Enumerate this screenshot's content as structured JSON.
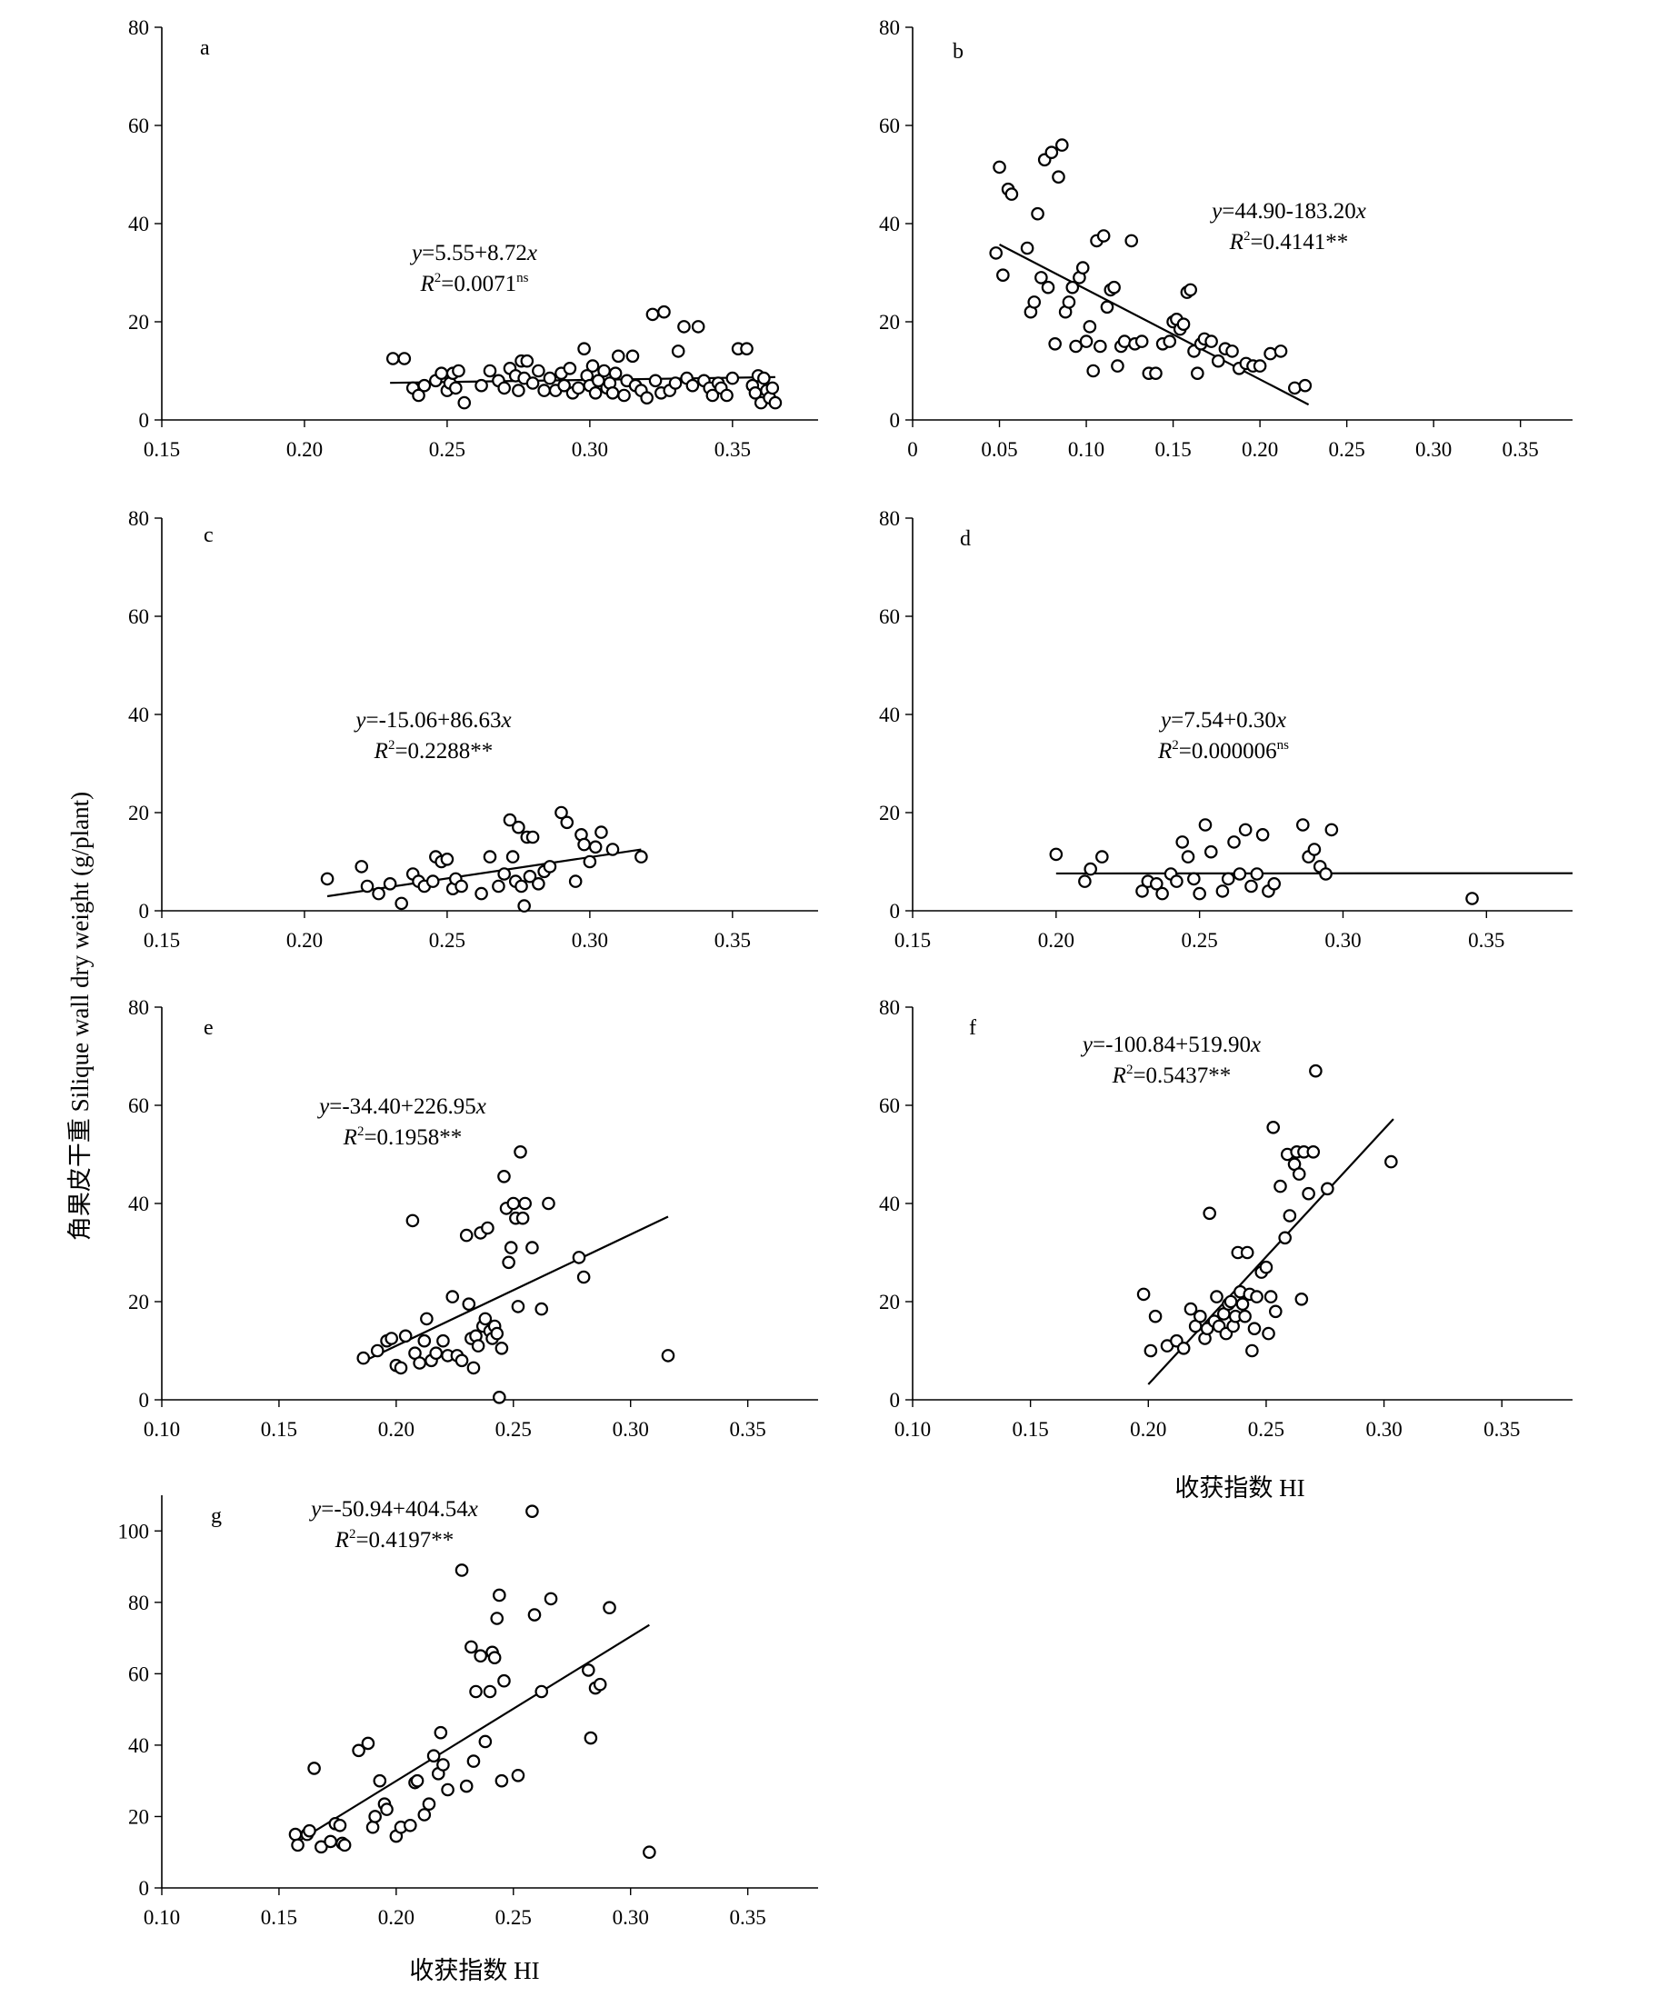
{
  "figure": {
    "y_axis_label": "角果皮干重 Silique wall dry weight (g/plant)",
    "x_axis_label_f": "收获指数 HI",
    "x_axis_label_g": "收获指数 HI"
  },
  "chart_data": [
    {
      "type": "scatter",
      "panel": "a",
      "title": "a",
      "equation": "y=5.55+8.72x",
      "r2_text": "R²=0.0071ns",
      "eq_y": "y",
      "eq_rhs": "=5.55+8.72",
      "eq_x": "x",
      "r2_R": "R",
      "r2_val": "=0.0071",
      "r2_sig": "ns",
      "xlim": [
        0.15,
        0.38
      ],
      "ylim": [
        0,
        80
      ],
      "xticks": [
        "0.15",
        "0.20",
        "0.25",
        "0.30",
        "0.35"
      ],
      "yticks": [
        "0",
        "20",
        "40",
        "60",
        "80"
      ],
      "fit": {
        "intercept": 5.55,
        "slope": 8.72,
        "x_range": [
          0.23,
          0.365
        ]
      },
      "x": [
        0.231,
        0.235,
        0.238,
        0.24,
        0.242,
        0.246,
        0.248,
        0.25,
        0.251,
        0.252,
        0.253,
        0.254,
        0.256,
        0.262,
        0.265,
        0.268,
        0.27,
        0.272,
        0.274,
        0.275,
        0.276,
        0.277,
        0.278,
        0.28,
        0.282,
        0.284,
        0.286,
        0.288,
        0.29,
        0.291,
        0.293,
        0.294,
        0.296,
        0.298,
        0.299,
        0.3,
        0.301,
        0.302,
        0.303,
        0.305,
        0.306,
        0.307,
        0.308,
        0.309,
        0.31,
        0.312,
        0.313,
        0.315,
        0.316,
        0.318,
        0.32,
        0.322,
        0.323,
        0.325,
        0.326,
        0.328,
        0.33,
        0.331,
        0.333,
        0.334,
        0.336,
        0.338,
        0.34,
        0.342,
        0.343,
        0.345,
        0.346,
        0.348,
        0.35,
        0.352,
        0.355,
        0.357,
        0.358,
        0.359,
        0.36,
        0.361,
        0.362,
        0.363,
        0.364,
        0.365
      ],
      "y": [
        12.5,
        12.5,
        6.5,
        5.0,
        7.0,
        8.0,
        9.5,
        6.0,
        7.5,
        9.5,
        6.5,
        10.0,
        3.5,
        7.0,
        10.0,
        8.0,
        6.5,
        10.5,
        9.0,
        6.0,
        12.0,
        8.5,
        12.0,
        7.5,
        10.0,
        6.0,
        8.5,
        6.0,
        9.5,
        7.0,
        10.5,
        5.5,
        6.5,
        14.5,
        9.0,
        7.0,
        11.0,
        5.5,
        8.0,
        10.0,
        6.5,
        7.5,
        5.5,
        9.5,
        13.0,
        5.0,
        8.0,
        13.0,
        7.0,
        6.0,
        4.5,
        21.5,
        8.0,
        5.5,
        22.0,
        6.0,
        7.5,
        14.0,
        19.0,
        8.5,
        7.0,
        19.0,
        8.0,
        6.5,
        5.0,
        7.5,
        6.5,
        5.0,
        8.5,
        14.5,
        14.5,
        7.0,
        5.5,
        9.0,
        3.5,
        8.5,
        6.0,
        4.5,
        6.5,
        3.5
      ]
    },
    {
      "type": "scatter",
      "panel": "b",
      "title": "b",
      "equation": "y=44.90-183.20x",
      "r2_text": "R²=0.4141**",
      "eq_y": "y",
      "eq_rhs": "=44.90-183.20",
      "eq_x": "x",
      "r2_R": "R",
      "r2_val": "=0.4141**",
      "r2_sig": "",
      "xlim": [
        0,
        0.38
      ],
      "ylim": [
        0,
        80
      ],
      "xticks": [
        "0",
        "0.05",
        "0.10",
        "0.15",
        "0.20",
        "0.25",
        "0.30",
        "0.35"
      ],
      "yticks": [
        "0",
        "20",
        "40",
        "60",
        "80"
      ],
      "fit": {
        "intercept": 44.9,
        "slope": -183.2,
        "x_range": [
          0.05,
          0.228
        ]
      },
      "x": [
        0.048,
        0.05,
        0.052,
        0.055,
        0.057,
        0.066,
        0.068,
        0.07,
        0.072,
        0.074,
        0.076,
        0.078,
        0.08,
        0.082,
        0.084,
        0.086,
        0.088,
        0.09,
        0.092,
        0.094,
        0.096,
        0.098,
        0.1,
        0.102,
        0.104,
        0.106,
        0.108,
        0.11,
        0.112,
        0.114,
        0.116,
        0.118,
        0.12,
        0.122,
        0.126,
        0.128,
        0.132,
        0.136,
        0.14,
        0.144,
        0.148,
        0.15,
        0.152,
        0.154,
        0.156,
        0.158,
        0.16,
        0.162,
        0.164,
        0.166,
        0.168,
        0.172,
        0.176,
        0.18,
        0.184,
        0.188,
        0.192,
        0.196,
        0.2,
        0.206,
        0.212,
        0.22,
        0.226
      ],
      "y": [
        34.0,
        51.5,
        29.5,
        47.0,
        46.0,
        35.0,
        22.0,
        24.0,
        42.0,
        29.0,
        53.0,
        27.0,
        54.5,
        15.5,
        49.5,
        56.0,
        22.0,
        24.0,
        27.0,
        15.0,
        29.0,
        31.0,
        16.0,
        19.0,
        10.0,
        36.5,
        15.0,
        37.5,
        23.0,
        26.5,
        27.0,
        11.0,
        15.0,
        16.0,
        36.5,
        15.5,
        16.0,
        9.5,
        9.5,
        15.5,
        16.0,
        20.0,
        20.5,
        18.5,
        19.5,
        26.0,
        26.5,
        14.0,
        9.5,
        15.5,
        16.5,
        16.0,
        12.0,
        14.5,
        14.0,
        10.5,
        11.5,
        11.0,
        11.0,
        13.5,
        14.0,
        6.5,
        7.0
      ]
    },
    {
      "type": "scatter",
      "panel": "c",
      "title": "c",
      "equation": "y=-15.06+86.63x",
      "r2_text": "R²=0.2288**",
      "eq_y": "y",
      "eq_rhs": "=-15.06+86.63",
      "eq_x": "x",
      "r2_R": "R",
      "r2_val": "=0.2288**",
      "r2_sig": "",
      "xlim": [
        0.15,
        0.38
      ],
      "ylim": [
        0,
        80
      ],
      "xticks": [
        "0.15",
        "0.20",
        "0.25",
        "0.30",
        "0.35"
      ],
      "yticks": [
        "0",
        "20",
        "40",
        "60",
        "80"
      ],
      "fit": {
        "intercept": -15.06,
        "slope": 86.63,
        "x_range": [
          0.208,
          0.318
        ]
      },
      "x": [
        0.208,
        0.22,
        0.222,
        0.226,
        0.23,
        0.234,
        0.238,
        0.24,
        0.242,
        0.245,
        0.246,
        0.248,
        0.25,
        0.252,
        0.253,
        0.255,
        0.262,
        0.265,
        0.268,
        0.27,
        0.272,
        0.273,
        0.274,
        0.275,
        0.276,
        0.277,
        0.278,
        0.279,
        0.28,
        0.282,
        0.284,
        0.286,
        0.29,
        0.292,
        0.295,
        0.297,
        0.298,
        0.3,
        0.302,
        0.304,
        0.308,
        0.318
      ],
      "y": [
        6.5,
        9.0,
        5.0,
        3.5,
        5.5,
        1.5,
        7.5,
        6.0,
        5.0,
        6.0,
        11.0,
        10.0,
        10.5,
        4.5,
        6.5,
        5.0,
        3.5,
        11.0,
        5.0,
        7.5,
        18.5,
        11.0,
        6.0,
        17.0,
        5.0,
        1.0,
        15.0,
        7.0,
        15.0,
        5.5,
        8.0,
        9.0,
        20.0,
        18.0,
        6.0,
        15.5,
        13.5,
        10.0,
        13.0,
        16.0,
        12.5,
        11.0
      ]
    },
    {
      "type": "scatter",
      "panel": "d",
      "title": "d",
      "equation": "y=7.54+0.30x",
      "r2_text": "R²=0.000006ns",
      "eq_y": "y",
      "eq_rhs": "=7.54+0.30",
      "eq_x": "x",
      "r2_R": "R",
      "r2_val": "=0.000006",
      "r2_sig": "ns",
      "xlim": [
        0.15,
        0.38
      ],
      "ylim": [
        0,
        80
      ],
      "xticks": [
        "0.15",
        "0.20",
        "0.25",
        "0.30",
        "0.35"
      ],
      "yticks": [
        "0",
        "20",
        "40",
        "60",
        "80"
      ],
      "fit": {
        "intercept": 7.54,
        "slope": 0.3,
        "x_range": [
          0.2,
          0.38
        ]
      },
      "x": [
        0.2,
        0.21,
        0.212,
        0.216,
        0.23,
        0.232,
        0.235,
        0.237,
        0.24,
        0.242,
        0.244,
        0.246,
        0.248,
        0.25,
        0.252,
        0.254,
        0.258,
        0.26,
        0.262,
        0.264,
        0.266,
        0.268,
        0.27,
        0.272,
        0.274,
        0.276,
        0.286,
        0.288,
        0.29,
        0.292,
        0.294,
        0.296,
        0.345
      ],
      "y": [
        11.5,
        6.0,
        8.5,
        11.0,
        4.0,
        6.0,
        5.5,
        3.5,
        7.5,
        6.0,
        14.0,
        11.0,
        6.5,
        3.5,
        17.5,
        12.0,
        4.0,
        6.5,
        14.0,
        7.5,
        16.5,
        5.0,
        7.5,
        15.5,
        4.0,
        5.5,
        17.5,
        11.0,
        12.5,
        9.0,
        7.5,
        16.5,
        2.5
      ]
    },
    {
      "type": "scatter",
      "panel": "e",
      "title": "e",
      "equation": "y=-34.40+226.95x",
      "r2_text": "R²=0.1958**",
      "eq_y": "y",
      "eq_rhs": "=-34.40+226.95",
      "eq_x": "x",
      "r2_R": "R",
      "r2_val": "=0.1958**",
      "r2_sig": "",
      "xlim": [
        0.1,
        0.38
      ],
      "ylim": [
        0,
        80
      ],
      "xticks": [
        "0.10",
        "0.15",
        "0.20",
        "0.25",
        "0.30",
        "0.35"
      ],
      "yticks": [
        "0",
        "20",
        "40",
        "60",
        "80"
      ],
      "fit": {
        "intercept": -34.4,
        "slope": 226.95,
        "x_range": [
          0.185,
          0.316
        ]
      },
      "x": [
        0.186,
        0.192,
        0.196,
        0.198,
        0.2,
        0.202,
        0.204,
        0.207,
        0.208,
        0.21,
        0.212,
        0.213,
        0.215,
        0.217,
        0.22,
        0.222,
        0.224,
        0.226,
        0.228,
        0.23,
        0.231,
        0.232,
        0.233,
        0.234,
        0.235,
        0.236,
        0.237,
        0.238,
        0.239,
        0.24,
        0.241,
        0.242,
        0.243,
        0.244,
        0.245,
        0.246,
        0.247,
        0.248,
        0.249,
        0.25,
        0.251,
        0.252,
        0.253,
        0.254,
        0.255,
        0.258,
        0.262,
        0.265,
        0.278,
        0.28,
        0.316
      ],
      "y": [
        8.5,
        10.0,
        12.0,
        12.5,
        7.0,
        6.5,
        13.0,
        36.5,
        9.5,
        7.5,
        12.0,
        16.5,
        8.0,
        9.5,
        12.0,
        9.0,
        21.0,
        9.0,
        8.0,
        33.5,
        19.5,
        12.5,
        6.5,
        13.0,
        11.0,
        34.0,
        15.0,
        16.5,
        35.0,
        14.0,
        12.5,
        15.0,
        13.5,
        0.5,
        10.5,
        45.5,
        39.0,
        28.0,
        31.0,
        40.0,
        37.0,
        19.0,
        50.5,
        37.0,
        40.0,
        31.0,
        18.5,
        40.0,
        29.0,
        25.0,
        9.0
      ]
    },
    {
      "type": "scatter",
      "panel": "f",
      "title": "f",
      "equation": "y=-100.84+519.90x",
      "r2_text": "R²=0.5437**",
      "eq_y": "y",
      "eq_rhs": "=-100.84+519.90",
      "eq_x": "x",
      "r2_R": "R",
      "r2_val": "=0.5437**",
      "r2_sig": "",
      "xlim": [
        0.1,
        0.38
      ],
      "ylim": [
        0,
        80
      ],
      "xticks": [
        "0.10",
        "0.15",
        "0.20",
        "0.25",
        "0.30",
        "0.35"
      ],
      "yticks": [
        "0",
        "20",
        "40",
        "60",
        "80"
      ],
      "fit": {
        "intercept": -100.84,
        "slope": 519.9,
        "x_range": [
          0.2,
          0.304
        ]
      },
      "x": [
        0.198,
        0.201,
        0.203,
        0.208,
        0.212,
        0.215,
        0.218,
        0.22,
        0.222,
        0.224,
        0.225,
        0.226,
        0.228,
        0.229,
        0.23,
        0.232,
        0.233,
        0.234,
        0.235,
        0.236,
        0.237,
        0.238,
        0.239,
        0.24,
        0.241,
        0.242,
        0.243,
        0.244,
        0.245,
        0.246,
        0.248,
        0.25,
        0.251,
        0.252,
        0.253,
        0.254,
        0.256,
        0.258,
        0.259,
        0.26,
        0.262,
        0.263,
        0.264,
        0.265,
        0.266,
        0.268,
        0.27,
        0.271,
        0.276,
        0.303
      ],
      "y": [
        21.5,
        10.0,
        17.0,
        11.0,
        12.0,
        10.5,
        18.5,
        15.0,
        17.0,
        12.5,
        14.5,
        38.0,
        16.0,
        21.0,
        15.0,
        17.5,
        13.5,
        19.5,
        20.0,
        15.0,
        17.0,
        30.0,
        22.0,
        19.5,
        17.0,
        30.0,
        21.5,
        10.0,
        14.5,
        21.0,
        26.0,
        27.0,
        13.5,
        21.0,
        55.5,
        18.0,
        43.5,
        33.0,
        50.0,
        37.5,
        48.0,
        50.5,
        46.0,
        20.5,
        50.5,
        42.0,
        50.5,
        67.0,
        43.0,
        48.5
      ]
    },
    {
      "type": "scatter",
      "panel": "g",
      "title": "g",
      "equation": "y=-50.94+404.54x",
      "r2_text": "R²=0.4197**",
      "eq_y": "y",
      "eq_rhs": "=-50.94+404.54",
      "eq_x": "x",
      "r2_R": "R",
      "r2_val": "=0.4197**",
      "r2_sig": "",
      "xlim": [
        0.1,
        0.38
      ],
      "ylim": [
        0,
        110
      ],
      "xticks": [
        "0.10",
        "0.15",
        "0.20",
        "0.25",
        "0.30",
        "0.35"
      ],
      "yticks": [
        "0",
        "20",
        "40",
        "60",
        "80",
        "100"
      ],
      "fit": {
        "intercept": -50.94,
        "slope": 404.54,
        "x_range": [
          0.157,
          0.308
        ]
      },
      "x": [
        0.157,
        0.158,
        0.162,
        0.163,
        0.165,
        0.168,
        0.172,
        0.174,
        0.176,
        0.177,
        0.178,
        0.184,
        0.188,
        0.19,
        0.191,
        0.193,
        0.195,
        0.196,
        0.2,
        0.202,
        0.206,
        0.208,
        0.209,
        0.212,
        0.214,
        0.216,
        0.218,
        0.219,
        0.22,
        0.222,
        0.228,
        0.23,
        0.232,
        0.233,
        0.234,
        0.236,
        0.238,
        0.24,
        0.241,
        0.242,
        0.243,
        0.244,
        0.245,
        0.246,
        0.252,
        0.258,
        0.259,
        0.262,
        0.266,
        0.282,
        0.283,
        0.285,
        0.287,
        0.291,
        0.308
      ],
      "y": [
        15.0,
        12.0,
        15.0,
        16.0,
        33.5,
        11.5,
        13.0,
        18.0,
        17.5,
        12.5,
        12.0,
        38.5,
        40.5,
        17.0,
        20.0,
        30.0,
        23.5,
        22.0,
        14.5,
        17.0,
        17.5,
        29.5,
        30.0,
        20.5,
        23.5,
        37.0,
        32.0,
        43.5,
        34.5,
        27.5,
        89.0,
        28.5,
        67.5,
        35.5,
        55.0,
        65.0,
        41.0,
        55.0,
        66.0,
        64.5,
        75.5,
        82.0,
        30.0,
        58.0,
        31.5,
        105.5,
        76.5,
        55.0,
        81.0,
        61.0,
        42.0,
        56.0,
        57.0,
        78.5,
        10.0
      ]
    }
  ]
}
